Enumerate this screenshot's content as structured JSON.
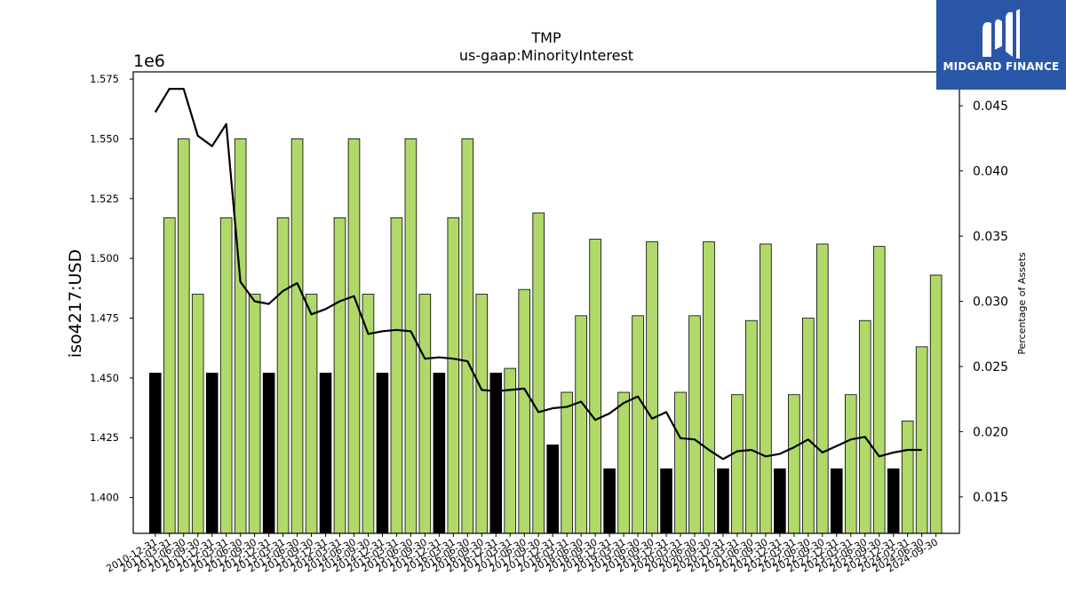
{
  "chart_data": {
    "type": "bar",
    "title": "TMP",
    "subtitle": "us-gaap:MinorityInterest",
    "ylabel": "iso4217:USD",
    "y_offset_label": "1e6",
    "y2label": "Percentage of Assets",
    "ylim": [
      1385000,
      1578000
    ],
    "y2lim": [
      0.0122,
      0.0476
    ],
    "yticks": [
      "1.400",
      "1.425",
      "1.450",
      "1.475",
      "1.500",
      "1.525",
      "1.550",
      "1.575"
    ],
    "y2ticks": [
      "0.015",
      "0.020",
      "0.025",
      "0.030",
      "0.035",
      "0.040",
      "0.045"
    ],
    "legend": "none",
    "grid": false,
    "colors": {
      "annual_bar": "#000000",
      "quarterly_bar": "#b0d96a",
      "line": "#000000"
    },
    "categories": [
      "2010-12-31",
      "2011-03-31",
      "2011-06-30",
      "2011-09-30",
      "2011-12-31",
      "2012-03-31",
      "2012-06-30",
      "2012-09-30",
      "2012-12-31",
      "2013-03-31",
      "2013-06-30",
      "2013-09-30",
      "2013-12-31",
      "2014-03-31",
      "2014-06-30",
      "2014-09-30",
      "2014-12-31",
      "2015-03-31",
      "2015-06-30",
      "2015-09-30",
      "2015-12-31",
      "2016-03-31",
      "2016-06-30",
      "2016-09-30",
      "2016-12-31",
      "2017-03-31",
      "2017-06-30",
      "2017-09-30",
      "2017-12-31",
      "2018-03-31",
      "2018-06-30",
      "2018-09-30",
      "2018-12-31",
      "2019-03-31",
      "2019-06-30",
      "2019-09-30",
      "2019-12-31",
      "2020-03-31",
      "2020-06-30",
      "2020-09-30",
      "2020-12-31",
      "2021-03-31",
      "2021-06-30",
      "2021-09-30",
      "2021-12-31",
      "2022-03-31",
      "2022-06-30",
      "2022-09-30",
      "2022-12-31",
      "2023-03-31",
      "2023-06-30",
      "2023-09-30",
      "2023-12-31",
      "2024-03-31",
      "2024-06-30",
      "2024-09-30"
    ],
    "series": [
      {
        "kind": "annual",
        "values": [
          1452000,
          null,
          null,
          null,
          1452000,
          null,
          null,
          null,
          1452000,
          null,
          null,
          null,
          1452000,
          null,
          null,
          null,
          1452000,
          null,
          null,
          null,
          1452000,
          null,
          null,
          null,
          1452000,
          null,
          null,
          null,
          1422000,
          null,
          null,
          null,
          1412000,
          null,
          null,
          null,
          1412000,
          null,
          null,
          null,
          1412000,
          null,
          null,
          null,
          1412000,
          null,
          null,
          null,
          1412000,
          null,
          null,
          null,
          1412000,
          null,
          null,
          null
        ]
      },
      {
        "kind": "quarterly",
        "values": [
          null,
          1517000,
          1550000,
          1485000,
          null,
          1517000,
          1550000,
          1485000,
          null,
          1517000,
          1550000,
          1485000,
          null,
          1517000,
          1550000,
          1485000,
          null,
          1517000,
          1550000,
          1485000,
          null,
          1517000,
          1550000,
          1485000,
          null,
          1454000,
          1487000,
          1519000,
          null,
          1444000,
          1476000,
          1508000,
          null,
          1444000,
          1476000,
          1507000,
          null,
          1444000,
          1476000,
          1507000,
          null,
          1443000,
          1474000,
          1506000,
          null,
          1443000,
          1475000,
          1506000,
          null,
          1443000,
          1474000,
          1505000,
          null,
          1432000,
          1463000,
          1493000
        ]
      },
      {
        "kind": "line",
        "axis": "right",
        "values": [
          0.0445,
          0.0463,
          0.0463,
          0.0427,
          0.0419,
          0.0436,
          0.0315,
          0.03,
          0.0298,
          0.0308,
          0.0314,
          0.029,
          0.0294,
          0.03,
          0.0304,
          0.0275,
          0.0277,
          0.0278,
          0.0277,
          0.0256,
          0.0257,
          0.0256,
          0.0254,
          0.0232,
          0.0231,
          0.0232,
          0.0233,
          0.0215,
          0.0218,
          0.0219,
          0.0223,
          0.0209,
          0.0214,
          0.0222,
          0.0227,
          0.021,
          0.0215,
          0.0195,
          0.0194,
          0.0186,
          0.0179,
          0.0185,
          0.0186,
          0.0181,
          0.0183,
          0.0188,
          0.0194,
          0.0184,
          0.0189,
          0.0194,
          0.0196,
          0.0181,
          0.0184,
          0.0186,
          0.0186,
          null
        ]
      }
    ]
  },
  "logo": {
    "name": "MIDGARD FINANCE"
  }
}
